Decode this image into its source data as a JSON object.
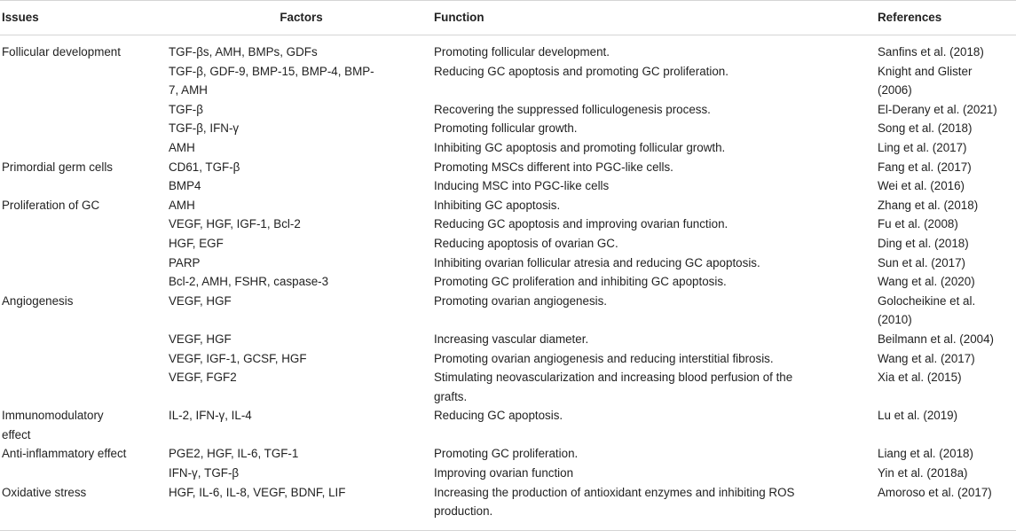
{
  "headers": {
    "issues": "Issues",
    "factors": "Factors",
    "function": "Function",
    "references": "References"
  },
  "rows": [
    {
      "issue": "Follicular development",
      "factors": "TGF-βs, AMH, BMPs, GDFs",
      "function": "Promoting follicular development.",
      "ref": "Sanfins et al. (2018)"
    },
    {
      "issue": "",
      "factors": "TGF-β, GDF-9, BMP-15, BMP-4, BMP-\n7, AMH",
      "function": "Reducing GC apoptosis and promoting GC proliferation.",
      "ref": "Knight and Glister\n(2006)"
    },
    {
      "issue": "",
      "factors": "TGF-β",
      "function": "Recovering the suppressed folliculogenesis process.",
      "ref": "El-Derany et al. (2021)"
    },
    {
      "issue": "",
      "factors": "TGF-β, IFN-γ",
      "function": "Promoting follicular growth.",
      "ref": "Song et al. (2018)"
    },
    {
      "issue": "",
      "factors": "AMH",
      "function": "Inhibiting GC apoptosis and promoting follicular growth.",
      "ref": "Ling et al. (2017)"
    },
    {
      "issue": "Primordial germ cells",
      "factors": "CD61, TGF-β",
      "function": "Promoting MSCs different into PGC-like cells.",
      "ref": "Fang et al. (2017)"
    },
    {
      "issue": "",
      "factors": "BMP4",
      "function": "Inducing MSC into PGC-like cells",
      "ref": "Wei et al. (2016)"
    },
    {
      "issue": "Proliferation of GC",
      "factors": "AMH",
      "function": "Inhibiting GC apoptosis.",
      "ref": "Zhang et al. (2018)"
    },
    {
      "issue": "",
      "factors": "VEGF, HGF, IGF-1, Bcl-2",
      "function": "Reducing GC apoptosis and improving ovarian function.",
      "ref": "Fu et al. (2008)"
    },
    {
      "issue": "",
      "factors": "HGF, EGF",
      "function": "Reducing apoptosis of ovarian GC.",
      "ref": "Ding et al. (2018)"
    },
    {
      "issue": "",
      "factors": "PARP",
      "function": "Inhibiting ovarian follicular atresia and reducing GC apoptosis.",
      "ref": "Sun et al. (2017)"
    },
    {
      "issue": "",
      "factors": "Bcl-2, AMH, FSHR, caspase-3",
      "function": "Promoting GC proliferation and inhibiting GC apoptosis.",
      "ref": "Wang et al. (2020)"
    },
    {
      "issue": "Angiogenesis",
      "factors": "VEGF, HGF",
      "function": "Promoting ovarian angiogenesis.",
      "ref": "Golocheikine et al.\n(2010)"
    },
    {
      "issue": "",
      "factors": "VEGF, HGF",
      "function": "Increasing vascular diameter.",
      "ref": "Beilmann et al. (2004)"
    },
    {
      "issue": "",
      "factors": "VEGF, IGF-1, GCSF, HGF",
      "function": "Promoting ovarian angiogenesis and reducing interstitial fibrosis.",
      "ref": "Wang et al. (2017)"
    },
    {
      "issue": "",
      "factors": "VEGF, FGF2",
      "function": "Stimulating neovascularization and increasing blood perfusion of the\ngrafts.",
      "ref": "Xia et al. (2015)"
    },
    {
      "issue": "Immunomodulatory\neffect",
      "factors": "IL-2, IFN-γ, IL-4",
      "function": "Reducing GC apoptosis.",
      "ref": "Lu et al. (2019)"
    },
    {
      "issue": "Anti-inflammatory effect",
      "factors": "PGE2, HGF, IL-6, TGF-1",
      "function": "Promoting GC proliferation.",
      "ref": "Liang et al. (2018)"
    },
    {
      "issue": "",
      "factors": "IFN-γ, TGF-β",
      "function": "Improving ovarian function",
      "ref": "Yin et al. (2018a)"
    },
    {
      "issue": "Oxidative stress",
      "factors": "HGF, IL-6, IL-8, VEGF, BDNF, LIF",
      "function": "Increasing the production of antioxidant enzymes and inhibiting ROS\nproduction.",
      "ref": "Amoroso et al. (2017)"
    }
  ]
}
